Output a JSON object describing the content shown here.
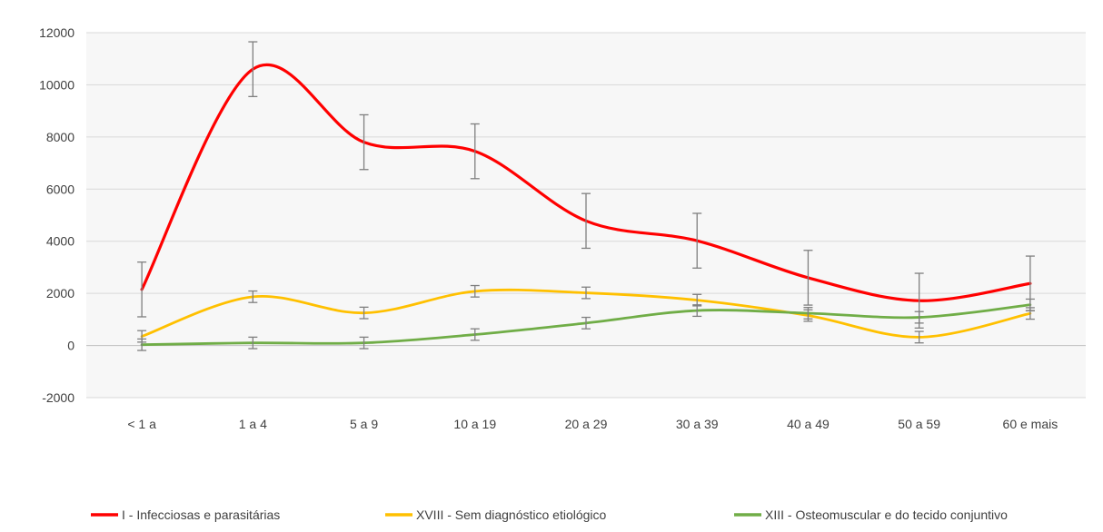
{
  "chart_data": {
    "type": "line",
    "title": "",
    "xlabel": "",
    "ylabel": "",
    "categories": [
      "< 1 a",
      "1 a 4",
      "5 a 9",
      "10 a 19",
      "20 a 29",
      "30 a 39",
      "40 a 49",
      "50 a 59",
      "60 e mais"
    ],
    "ylim": [
      -2000,
      12000
    ],
    "yticks": [
      "12000",
      "10000",
      "8000",
      "6000",
      "4000",
      "2000",
      "0",
      "-2000"
    ],
    "ytick_values": [
      12000,
      10000,
      8000,
      6000,
      4000,
      2000,
      0,
      -2000
    ],
    "grid": true,
    "smooth": true,
    "error_bars": true,
    "legend_position": "bottom",
    "series": [
      {
        "name": "I - Infecciosas e parasitárias",
        "color": "#FF0000",
        "values": [
          2150,
          10600,
          7800,
          7450,
          4780,
          4020,
          2600,
          1720,
          2380
        ],
        "error": 1050
      },
      {
        "name": "XVIII - Sem diagnóstico etiológico",
        "color": "#FFC000",
        "values": [
          350,
          1870,
          1250,
          2080,
          2020,
          1740,
          1150,
          320,
          1230
        ],
        "error": 220
      },
      {
        "name": "XIII - Osteomuscular e do tecido conjuntivo",
        "color": "#70AD47",
        "values": [
          30,
          100,
          100,
          420,
          860,
          1340,
          1240,
          1080,
          1560
        ],
        "error": 220
      }
    ]
  }
}
